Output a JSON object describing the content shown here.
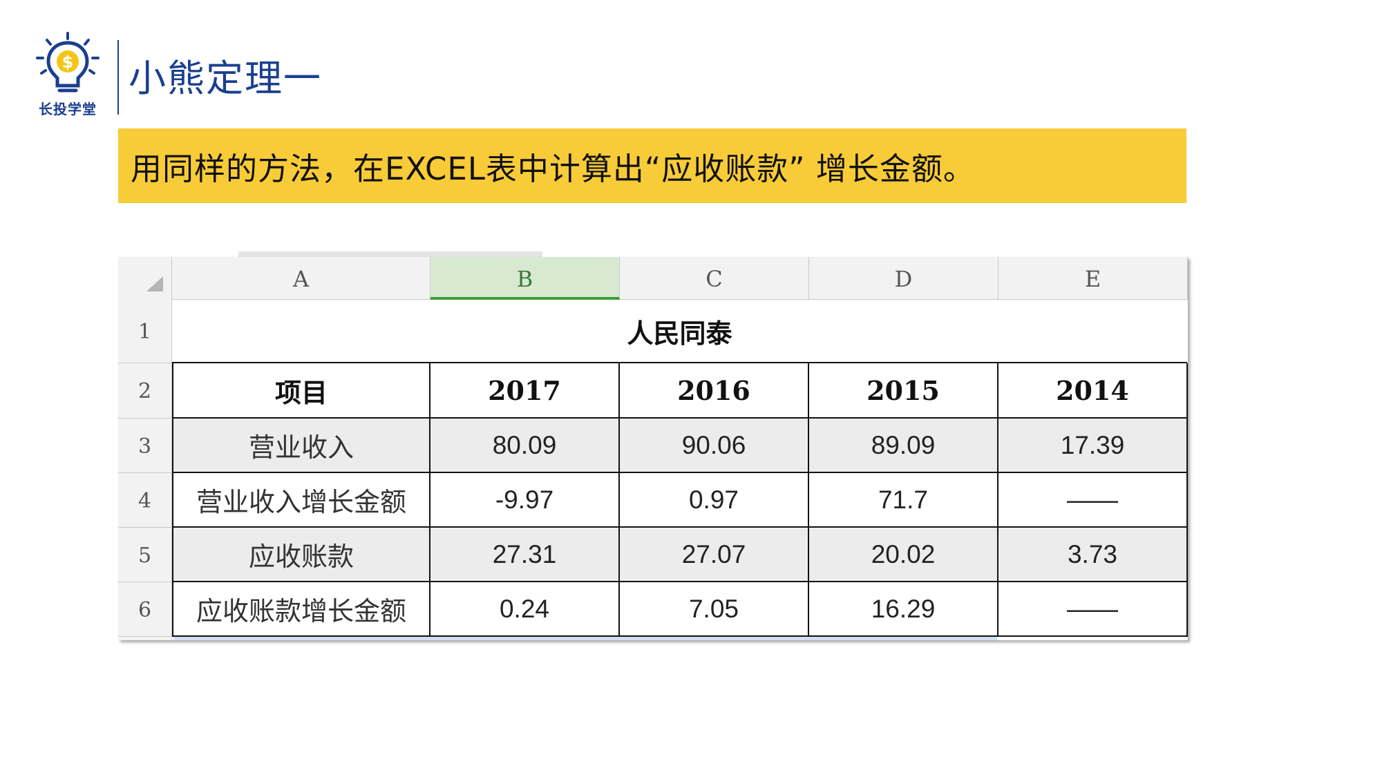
{
  "logo": {
    "text": "长投学堂",
    "icon": "lightbulb-dollar-icon",
    "colors": {
      "bulb": "#1b3f8f",
      "coin": "#f5c518"
    }
  },
  "page_title": "小熊定理一",
  "banner": {
    "text": "用同样的方法，在EXCEL表中计算出“应收账款” 增长金额。",
    "color": "#f8cb38"
  },
  "sheet": {
    "corner_icon": "select-all-triangle-icon",
    "columns": [
      "A",
      "B",
      "C",
      "D",
      "E"
    ],
    "selected_column": "B",
    "rows": [
      "1",
      "2",
      "3",
      "4",
      "5",
      "6"
    ],
    "title": "人民同泰",
    "header": {
      "label": "项目",
      "years": [
        "2017",
        "2016",
        "2015",
        "2014"
      ]
    },
    "data": [
      {
        "label": "营业收入",
        "values": [
          "80.09",
          "90.06",
          "89.09",
          "17.39"
        ]
      },
      {
        "label": "营业收入增长金额",
        "values": [
          "-9.97",
          "0.97",
          "71.7",
          "——"
        ]
      },
      {
        "label": "应收账款",
        "values": [
          "27.31",
          "27.07",
          "20.02",
          "3.73"
        ]
      },
      {
        "label": "应收账款增长金额",
        "values": [
          "0.24",
          "7.05",
          "16.29",
          "——"
        ]
      }
    ],
    "colors": {
      "selected_header_bg": "#d8e9d2",
      "selected_header_border": "#3d9b36",
      "shaded_row": "#ececec"
    }
  }
}
